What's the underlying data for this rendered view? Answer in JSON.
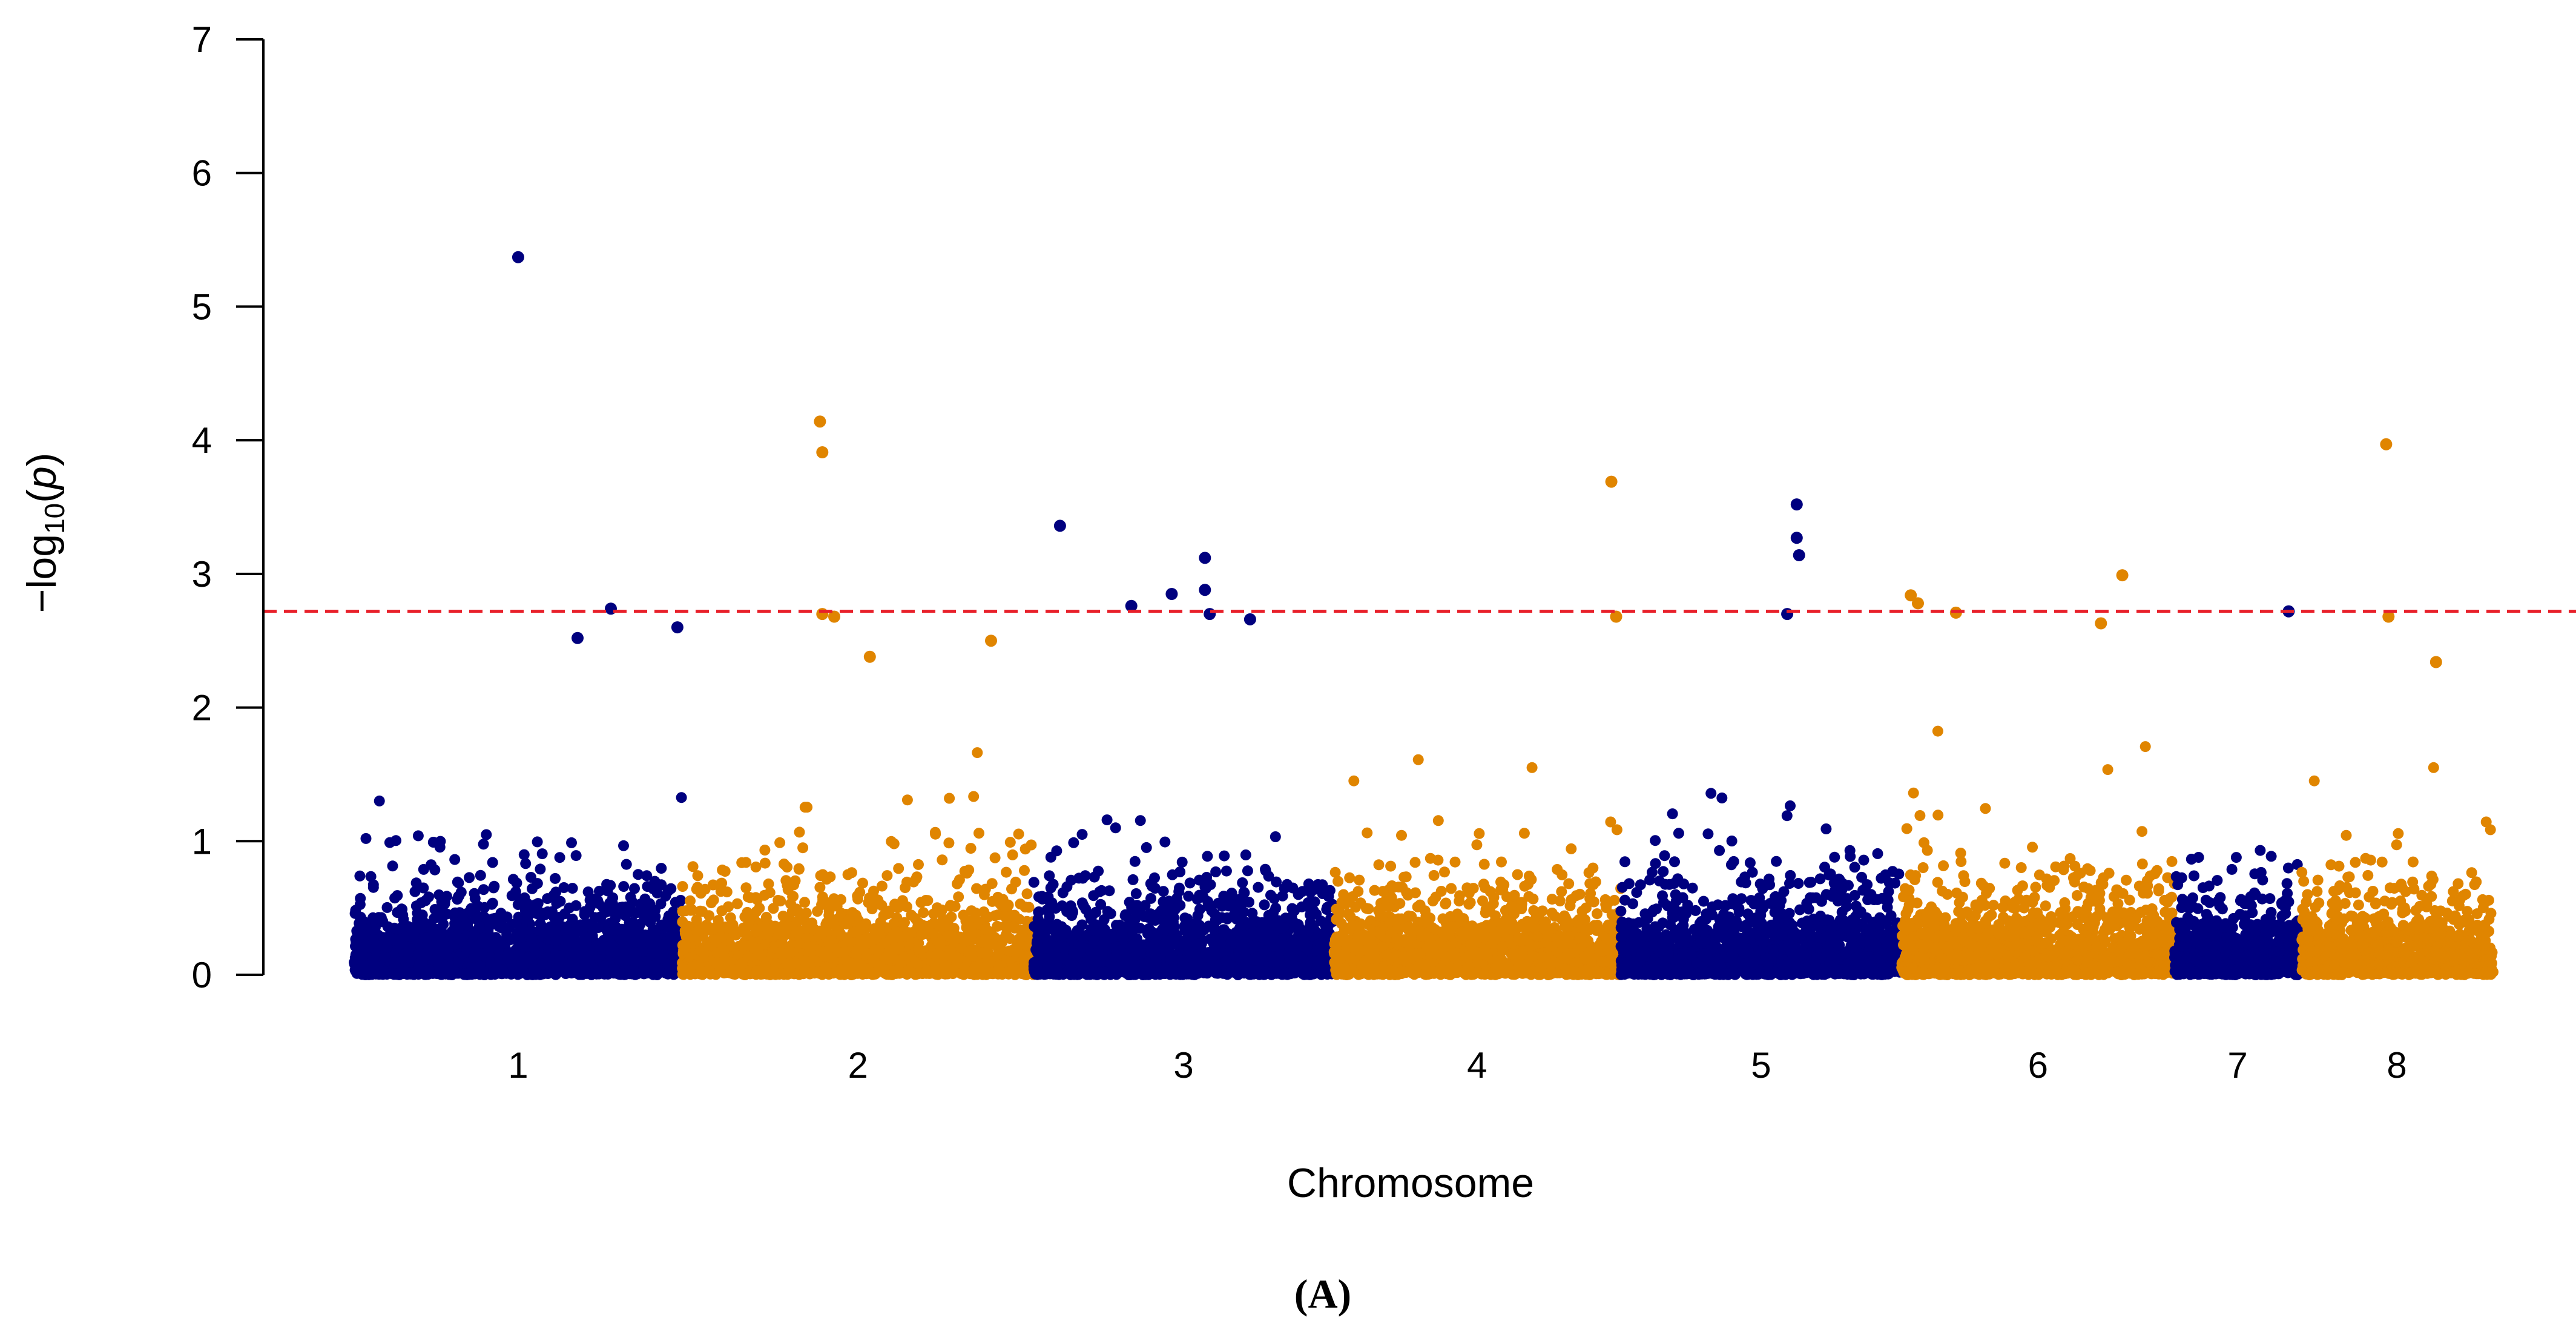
{
  "chart_data": {
    "type": "scatter",
    "subtype": "manhattan",
    "title": "",
    "panel_label": "(A)",
    "xlabel": "Chromosome",
    "ylabel_prefix": "−log",
    "ylabel_subscript": "10",
    "ylabel_suffix": "(p)",
    "ylim": [
      0,
      7
    ],
    "yticks": [
      "0",
      "1",
      "2",
      "3",
      "4",
      "5",
      "6",
      "7"
    ],
    "threshold": 2.72,
    "threshold_color": "#e8202a",
    "colors": [
      "#00007f",
      "#e08500"
    ],
    "grid": false,
    "legend": "none",
    "genome_range": [
      0,
      10
    ],
    "chromosomes": [
      {
        "label": "1",
        "start": 0.0,
        "end": 1.38,
        "color": "#00007f",
        "density": 3.0,
        "max_bg": 1.7
      },
      {
        "label": "2",
        "start": 1.38,
        "end": 2.86,
        "color": "#e08500",
        "density": 3.0,
        "max_bg": 1.75
      },
      {
        "label": "3",
        "start": 2.86,
        "end": 4.12,
        "color": "#00007f",
        "density": 3.0,
        "max_bg": 2.2
      },
      {
        "label": "4",
        "start": 4.12,
        "end": 5.33,
        "color": "#e08500",
        "density": 3.0,
        "max_bg": 1.9
      },
      {
        "label": "5",
        "start": 5.33,
        "end": 6.51,
        "color": "#00007f",
        "density": 3.0,
        "max_bg": 2.0
      },
      {
        "label": "6",
        "start": 6.51,
        "end": 7.66,
        "color": "#e08500",
        "density": 3.0,
        "max_bg": 1.9
      },
      {
        "label": "7",
        "start": 7.66,
        "end": 8.19,
        "color": "#00007f",
        "density": 3.0,
        "max_bg": 1.8
      },
      {
        "label": "8",
        "start": 8.19,
        "end": 9.0,
        "color": "#e08500",
        "density": 3.0,
        "max_bg": 1.8
      }
    ],
    "top_points": [
      {
        "chr": "1",
        "x": 0.69,
        "y": 5.37
      },
      {
        "chr": "1",
        "x": 0.94,
        "y": 2.52
      },
      {
        "chr": "1",
        "x": 1.08,
        "y": 2.74
      },
      {
        "chr": "1",
        "x": 1.36,
        "y": 2.6
      },
      {
        "chr": "2",
        "x": 1.96,
        "y": 4.14
      },
      {
        "chr": "2",
        "x": 1.97,
        "y": 3.91
      },
      {
        "chr": "2",
        "x": 1.97,
        "y": 2.7
      },
      {
        "chr": "2",
        "x": 2.02,
        "y": 2.68
      },
      {
        "chr": "2",
        "x": 2.17,
        "y": 2.38
      },
      {
        "chr": "2",
        "x": 2.68,
        "y": 2.5
      },
      {
        "chr": "3",
        "x": 2.97,
        "y": 3.36
      },
      {
        "chr": "3",
        "x": 3.27,
        "y": 2.76
      },
      {
        "chr": "3",
        "x": 3.44,
        "y": 2.85
      },
      {
        "chr": "3",
        "x": 3.58,
        "y": 3.12
      },
      {
        "chr": "3",
        "x": 3.58,
        "y": 2.88
      },
      {
        "chr": "3",
        "x": 3.6,
        "y": 2.7
      },
      {
        "chr": "3",
        "x": 3.77,
        "y": 2.66
      },
      {
        "chr": "4",
        "x": 5.29,
        "y": 3.69
      },
      {
        "chr": "4",
        "x": 5.31,
        "y": 2.68
      },
      {
        "chr": "5",
        "x": 6.07,
        "y": 3.52
      },
      {
        "chr": "5",
        "x": 6.07,
        "y": 3.27
      },
      {
        "chr": "5",
        "x": 6.08,
        "y": 3.14
      },
      {
        "chr": "5",
        "x": 6.03,
        "y": 2.7
      },
      {
        "chr": "6",
        "x": 6.55,
        "y": 2.84
      },
      {
        "chr": "6",
        "x": 6.58,
        "y": 2.78
      },
      {
        "chr": "6",
        "x": 6.74,
        "y": 2.71
      },
      {
        "chr": "6",
        "x": 7.35,
        "y": 2.63
      },
      {
        "chr": "6",
        "x": 7.44,
        "y": 2.99
      },
      {
        "chr": "7",
        "x": 8.14,
        "y": 2.72
      },
      {
        "chr": "8",
        "x": 8.55,
        "y": 3.97
      },
      {
        "chr": "8",
        "x": 8.56,
        "y": 2.68
      },
      {
        "chr": "8",
        "x": 8.76,
        "y": 2.34
      }
    ]
  }
}
